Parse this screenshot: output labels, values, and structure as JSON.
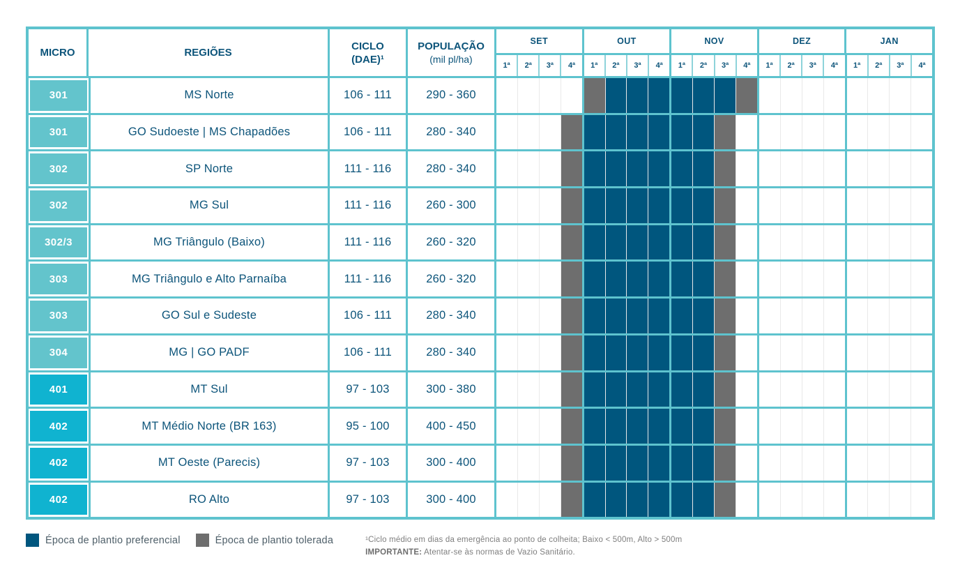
{
  "header": {
    "micro": "MICRO",
    "regioes": "REGIÕES",
    "ciclo_line1": "CICLO",
    "ciclo_line2": "(DAE)¹",
    "pop_line1": "POPULAÇÃO",
    "pop_line2": "(mil pl/ha)",
    "months": [
      "SET",
      "OUT",
      "NOV",
      "DEZ",
      "JAN"
    ],
    "weeks": [
      "1ª",
      "2ª",
      "3ª",
      "4ª"
    ]
  },
  "colors": {
    "grid_teal": "#5ec3ce",
    "micro_group_300": "#63c4cc",
    "micro_group_400": "#10b3d0",
    "preferred": "#00567e",
    "tolerated": "#6e6e6e",
    "header_text": "#0c547a"
  },
  "rows": [
    {
      "micro": "301",
      "group": "300",
      "region": "MS Norte",
      "ciclo": "106 - 111",
      "populacao": "290 - 360",
      "schedule": "....TPPPPPPT........"
    },
    {
      "micro": "301",
      "group": "300",
      "region": "GO Sudoeste | MS Chapadões",
      "ciclo": "106 - 111",
      "populacao": "280 - 340",
      "schedule": "...TPPPPPPT........."
    },
    {
      "micro": "302",
      "group": "300",
      "region": "SP Norte",
      "ciclo": "111 - 116",
      "populacao": "280 - 340",
      "schedule": "...TPPPPPPT........."
    },
    {
      "micro": "302",
      "group": "300",
      "region": "MG Sul",
      "ciclo": "111 - 116",
      "populacao": "260 - 300",
      "schedule": "...TPPPPPPT........."
    },
    {
      "micro": "302/3",
      "group": "300",
      "region": "MG Triângulo (Baixo)",
      "ciclo": "111 - 116",
      "populacao": "260 - 320",
      "schedule": "...TPPPPPPT........."
    },
    {
      "micro": "303",
      "group": "300",
      "region": "MG Triângulo e Alto Parnaíba",
      "ciclo": "111 - 116",
      "populacao": "260 - 320",
      "schedule": "...TPPPPPPT........."
    },
    {
      "micro": "303",
      "group": "300",
      "region": "GO Sul e Sudeste",
      "ciclo": "106 - 111",
      "populacao": "280 - 340",
      "schedule": "...TPPPPPPT........."
    },
    {
      "micro": "304",
      "group": "300",
      "region": "MG | GO PADF",
      "ciclo": "106 - 111",
      "populacao": "280 - 340",
      "schedule": "...TPPPPPPT........."
    },
    {
      "micro": "401",
      "group": "400",
      "region": "MT Sul",
      "ciclo": "97 - 103",
      "populacao": "300 - 380",
      "schedule": "...TPPPPPPT........."
    },
    {
      "micro": "402",
      "group": "400",
      "region": "MT Médio Norte (BR 163)",
      "ciclo": "95 - 100",
      "populacao": "400 - 450",
      "schedule": "...TPPPPPPT........."
    },
    {
      "micro": "402",
      "group": "400",
      "region": "MT Oeste (Parecis)",
      "ciclo": "97 - 103",
      "populacao": "300 - 400",
      "schedule": "...TPPPPPPT........."
    },
    {
      "micro": "402",
      "group": "400",
      "region": "RO Alto",
      "ciclo": "97 - 103",
      "populacao": "300 - 400",
      "schedule": "...TPPPPPPT........."
    }
  ],
  "legend": [
    {
      "label": "Época de plantio preferencial",
      "color": "#00567e"
    },
    {
      "label": "Época de plantio tolerada",
      "color": "#6e6e6e"
    }
  ],
  "footnotes": {
    "line1": "¹Ciclo médio em dias da emergência ao ponto de colheita; Baixo < 500m, Alto > 500m",
    "line2_bold": "IMPORTANTE:",
    "line2_rest": " Atentar-se às normas de Vazio Sanitário."
  },
  "chart_data": {
    "type": "table",
    "title": "Calendário de plantio por microrregião",
    "columns": [
      "MICRO",
      "REGIÕES",
      "CICLO (DAE)¹",
      "POPULAÇÃO (mil pl/ha)",
      "SET 1ª-4ª",
      "OUT 1ª-4ª",
      "NOV 1ª-4ª",
      "DEZ 1ª-4ª",
      "JAN 1ª-4ª"
    ],
    "week_slots": [
      "SET1",
      "SET2",
      "SET3",
      "SET4",
      "OUT1",
      "OUT2",
      "OUT3",
      "OUT4",
      "NOV1",
      "NOV2",
      "NOV3",
      "NOV4",
      "DEZ1",
      "DEZ2",
      "DEZ3",
      "DEZ4",
      "JAN1",
      "JAN2",
      "JAN3",
      "JAN4"
    ],
    "windows": [
      {
        "micro": "301",
        "region": "MS Norte",
        "preferred": "OUT 2ª - NOV 3ª",
        "tolerated": [
          "OUT 1ª",
          "NOV 4ª"
        ]
      },
      {
        "micro": "301",
        "region": "GO Sudoeste | MS Chapadões",
        "preferred": "OUT 1ª - NOV 2ª",
        "tolerated": [
          "SET 4ª",
          "NOV 3ª"
        ]
      },
      {
        "micro": "302",
        "region": "SP Norte",
        "preferred": "OUT 1ª - NOV 2ª",
        "tolerated": [
          "SET 4ª",
          "NOV 3ª"
        ]
      },
      {
        "micro": "302",
        "region": "MG Sul",
        "preferred": "OUT 1ª - NOV 2ª",
        "tolerated": [
          "SET 4ª",
          "NOV 3ª"
        ]
      },
      {
        "micro": "302/3",
        "region": "MG Triângulo (Baixo)",
        "preferred": "OUT 1ª - NOV 2ª",
        "tolerated": [
          "SET 4ª",
          "NOV 3ª"
        ]
      },
      {
        "micro": "303",
        "region": "MG Triângulo e Alto Parnaíba",
        "preferred": "OUT 1ª - NOV 2ª",
        "tolerated": [
          "SET 4ª",
          "NOV 3ª"
        ]
      },
      {
        "micro": "303",
        "region": "GO Sul e Sudeste",
        "preferred": "OUT 1ª - NOV 2ª",
        "tolerated": [
          "SET 4ª",
          "NOV 3ª"
        ]
      },
      {
        "micro": "304",
        "region": "MG | GO PADF",
        "preferred": "OUT 1ª - NOV 2ª",
        "tolerated": [
          "SET 4ª",
          "NOV 3ª"
        ]
      },
      {
        "micro": "401",
        "region": "MT Sul",
        "preferred": "OUT 1ª - NOV 2ª",
        "tolerated": [
          "SET 4ª",
          "NOV 3ª"
        ]
      },
      {
        "micro": "402",
        "region": "MT Médio Norte (BR 163)",
        "preferred": "OUT 1ª - NOV 2ª",
        "tolerated": [
          "SET 4ª",
          "NOV 3ª"
        ]
      },
      {
        "micro": "402",
        "region": "MT Oeste (Parecis)",
        "preferred": "OUT 1ª - NOV 2ª",
        "tolerated": [
          "SET 4ª",
          "NOV 3ª"
        ]
      },
      {
        "micro": "402",
        "region": "RO Alto",
        "preferred": "OUT 1ª - NOV 2ª",
        "tolerated": [
          "SET 4ª",
          "NOV 3ª"
        ]
      }
    ]
  }
}
